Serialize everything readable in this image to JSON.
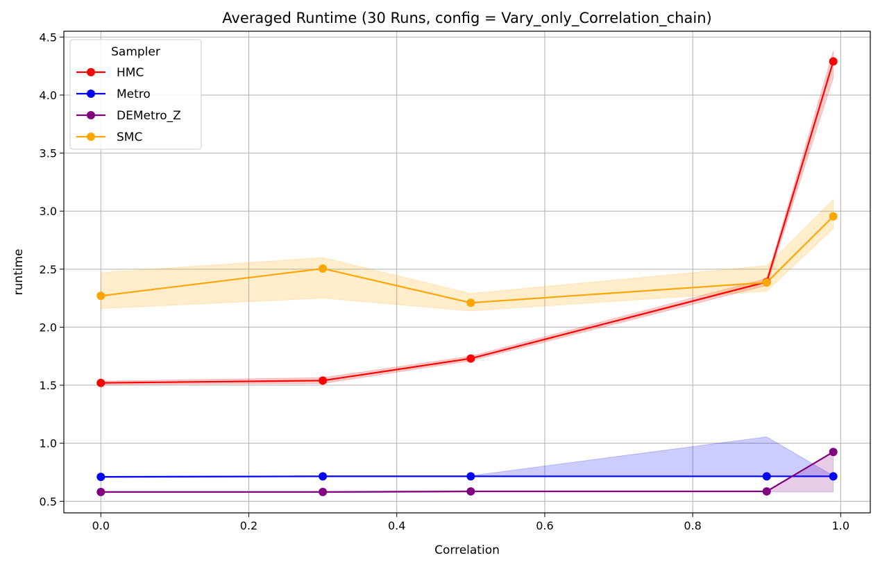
{
  "chart_data": {
    "type": "line",
    "title": "Averaged Runtime (30 Runs, config = Vary_only_Correlation_chain)",
    "xlabel": "Correlation",
    "ylabel": "runtime",
    "xlim": [
      -0.05,
      1.04
    ],
    "ylim": [
      0.4,
      4.55
    ],
    "x_ticks": [
      0.0,
      0.2,
      0.4,
      0.6,
      0.8,
      1.0
    ],
    "x_tick_labels": [
      "0.0",
      "0.2",
      "0.4",
      "0.6",
      "0.8",
      "1.0"
    ],
    "y_ticks": [
      0.5,
      1.0,
      1.5,
      2.0,
      2.5,
      3.0,
      3.5,
      4.0,
      4.5
    ],
    "y_tick_labels": [
      "0.5",
      "1.0",
      "1.5",
      "2.0",
      "2.5",
      "3.0",
      "3.5",
      "4.0",
      "4.5"
    ],
    "grid": true,
    "legend": {
      "title": "Sampler",
      "placement": "top-left"
    },
    "x": [
      0.0,
      0.3,
      0.5,
      0.9,
      0.99
    ],
    "series": [
      {
        "name": "HMC",
        "color": "#ff0000",
        "values": [
          1.52,
          1.54,
          1.73,
          2.39,
          4.29
        ],
        "lower": [
          1.505,
          1.515,
          1.71,
          2.36,
          4.15
        ],
        "upper": [
          1.535,
          1.565,
          1.75,
          2.42,
          4.38
        ]
      },
      {
        "name": "Metro",
        "color": "#0000ff",
        "values": [
          0.71,
          0.715,
          0.715,
          0.715,
          0.715
        ],
        "lower": [
          0.705,
          0.71,
          0.71,
          0.71,
          0.71
        ],
        "upper": [
          0.715,
          0.72,
          0.72,
          1.055,
          0.72
        ]
      },
      {
        "name": "DEMetro_Z",
        "color": "#800080",
        "values": [
          0.58,
          0.58,
          0.585,
          0.585,
          0.925
        ],
        "lower": [
          0.575,
          0.575,
          0.58,
          0.58,
          0.58
        ],
        "upper": [
          0.585,
          0.585,
          0.59,
          0.59,
          0.93
        ]
      },
      {
        "name": "SMC",
        "color": "#ffa500",
        "values": [
          2.27,
          2.505,
          2.21,
          2.385,
          2.955
        ],
        "lower": [
          2.16,
          2.25,
          2.14,
          2.31,
          2.85
        ],
        "upper": [
          2.47,
          2.6,
          2.29,
          2.53,
          3.1
        ]
      }
    ]
  }
}
